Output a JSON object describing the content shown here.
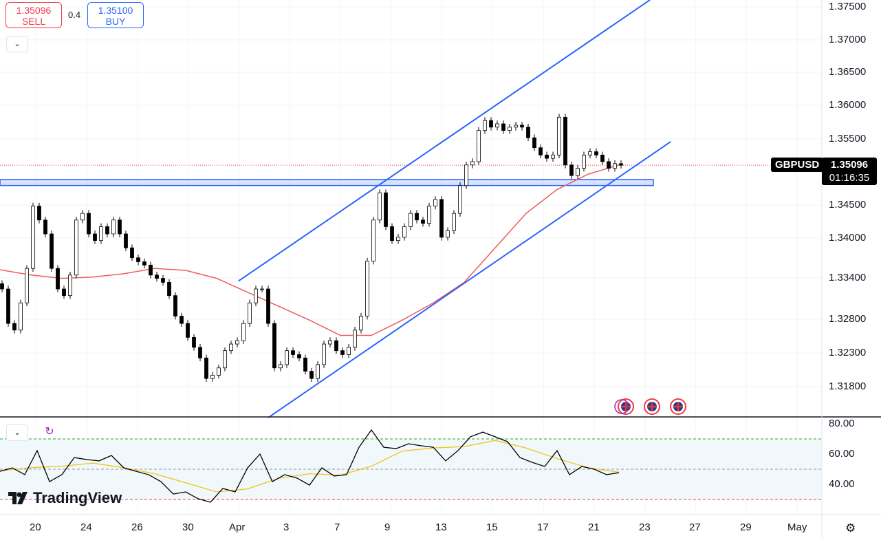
{
  "quote": {
    "sell_price": "1.35096",
    "sell_label": "SELL",
    "spread": "0.4",
    "buy_price": "1.35100",
    "buy_label": "BUY"
  },
  "symbol_tag": {
    "symbol": "GBPUSD",
    "price": "1.35096",
    "countdown": "01:16:35"
  },
  "brand": {
    "name": "TradingView"
  },
  "icons": {
    "collapse": "chevron-down-icon",
    "refresh": "refresh-icon",
    "settings": "gear-icon",
    "events": "uk-flag-icon"
  },
  "colors": {
    "bull": "#ffffff",
    "bear": "#000000",
    "ma": "#f05a5a",
    "trendline": "#2962ff",
    "rsi": "#000000",
    "rsi_ma": "#f0c419",
    "overbought": "#22ab22",
    "oversold": "#f23645",
    "current_price": "#f23645"
  },
  "chart_data": [
    {
      "type": "candlestick",
      "symbol": "GBPUSD",
      "y_ticks": [
        "1.37500",
        "1.37000",
        "1.36500",
        "1.36000",
        "1.35500",
        "1.34500",
        "1.34000",
        "1.33400",
        "1.32800",
        "1.32300",
        "1.31800"
      ],
      "x_ticks": [
        "20",
        "24",
        "26",
        "30",
        "Apr",
        "3",
        "7",
        "9",
        "13",
        "15",
        "17",
        "21",
        "23",
        "27",
        "29",
        "May"
      ],
      "closes": [
        1.3323,
        1.3271,
        1.3261,
        1.3302,
        1.3354,
        1.3448,
        1.3427,
        1.3406,
        1.3354,
        1.3323,
        1.3313,
        1.3344,
        1.3427,
        1.3437,
        1.3406,
        1.3396,
        1.3417,
        1.3406,
        1.3427,
        1.3406,
        1.3385,
        1.337,
        1.3364,
        1.3359,
        1.3344,
        1.3339,
        1.3333,
        1.3313,
        1.3282,
        1.3271,
        1.325,
        1.3235,
        1.3219,
        1.3188,
        1.3193,
        1.3204,
        1.323,
        1.324,
        1.3245,
        1.3271,
        1.3302,
        1.3323,
        1.3323,
        1.3271,
        1.3204,
        1.3209,
        1.323,
        1.3224,
        1.3219,
        1.3199,
        1.3188,
        1.3209,
        1.324,
        1.3245,
        1.323,
        1.3224,
        1.3235,
        1.3261,
        1.3282,
        1.3365,
        1.3427,
        1.3468,
        1.3417,
        1.3396,
        1.3401,
        1.3417,
        1.3437,
        1.3427,
        1.3422,
        1.3448,
        1.3458,
        1.3401,
        1.3411,
        1.3437,
        1.3479,
        1.351,
        1.3515,
        1.3562,
        1.3577,
        1.3567,
        1.3572,
        1.3562,
        1.3567,
        1.357,
        1.3567,
        1.3551,
        1.3536,
        1.3525,
        1.352,
        1.3525,
        1.3582,
        1.351,
        1.3494,
        1.3505,
        1.3525,
        1.353,
        1.3525,
        1.3515,
        1.3505,
        1.3512,
        1.35096
      ],
      "moving_average": [
        1.3352,
        1.3344,
        1.3339,
        1.3341,
        1.3346,
        1.3354,
        1.3351,
        1.3339,
        1.3318,
        1.3297,
        1.3276,
        1.3253,
        1.3253,
        1.3276,
        1.3302,
        1.3333,
        1.3385,
        1.3437,
        1.3473,
        1.3496,
        1.351
      ],
      "current_price": 1.35096,
      "support_zone": [
        1.3479,
        1.3488
      ],
      "channel": {
        "upper": [
          [
            38.2,
            1.3335
          ],
          [
            104.7,
            1.3759
          ]
        ],
        "lower": [
          [
            43.0,
            1.3129
          ],
          [
            108.0,
            1.3545
          ]
        ]
      },
      "ylim": [
        1.311,
        1.377
      ]
    },
    {
      "type": "line",
      "name": "RSI",
      "y_ticks": [
        "80.00",
        "60.00",
        "40.00"
      ],
      "levels": {
        "upper": 70,
        "middle": 50,
        "lower": 30
      },
      "rsi": [
        48.6,
        50.9,
        46.4,
        62.3,
        41.8,
        46.4,
        57.7,
        56.4,
        55.5,
        59.1,
        50.9,
        48.6,
        46.4,
        41.8,
        33.6,
        35.0,
        30.5,
        28.2,
        37.3,
        35.0,
        50.9,
        60.0,
        41.8,
        46.4,
        44.1,
        39.5,
        50.9,
        45.5,
        46.4,
        64.5,
        75.9,
        64.5,
        63.6,
        66.8,
        65.5,
        64.5,
        55.5,
        62.3,
        71.4,
        74.5,
        71.4,
        68.2,
        57.7,
        54.5,
        51.8,
        62.3,
        46.4,
        51.8,
        50.0,
        46.4,
        47.7
      ],
      "rsi_ma": [
        49,
        51,
        52,
        54,
        51,
        47,
        41,
        35,
        37,
        44,
        47,
        46,
        52,
        62,
        64,
        65,
        69,
        64,
        57,
        51,
        48
      ],
      "ylim": [
        15,
        88
      ]
    }
  ]
}
